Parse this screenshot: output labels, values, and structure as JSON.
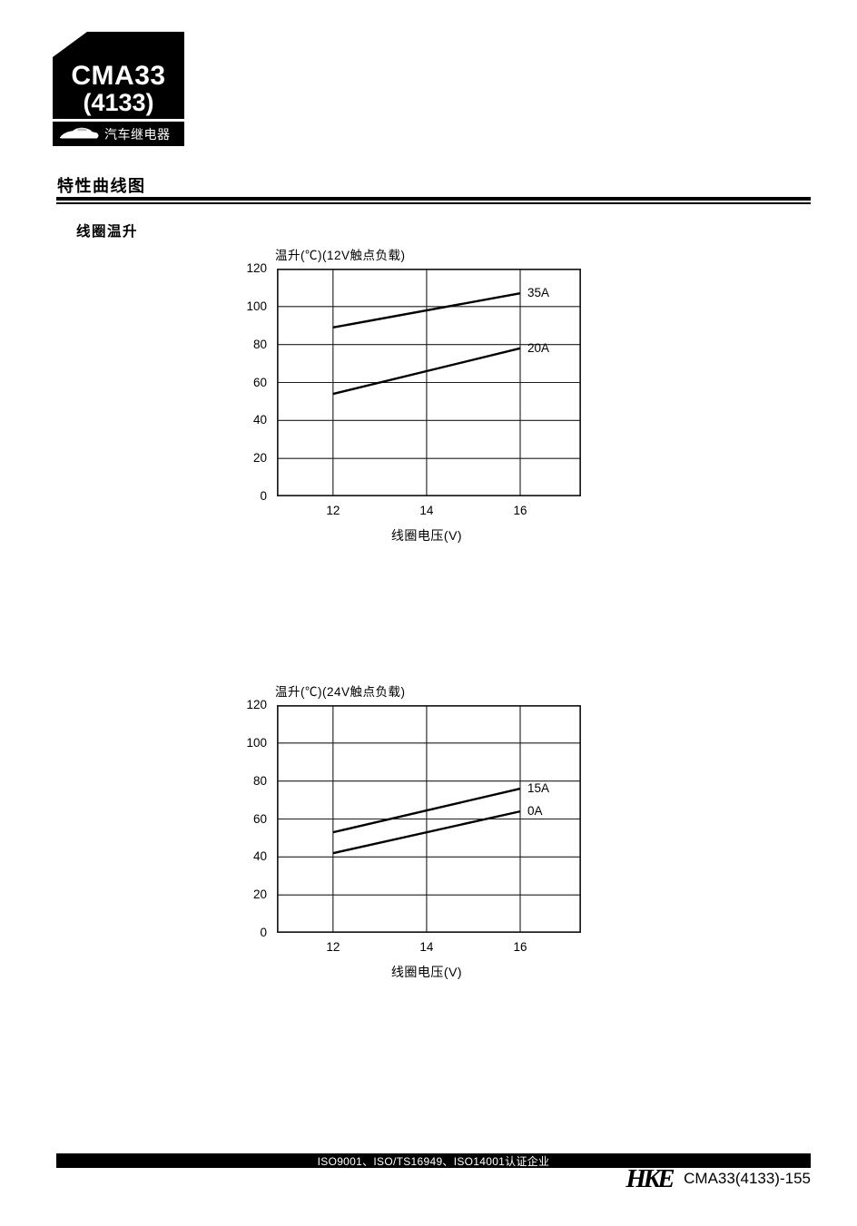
{
  "colors": {
    "ink": "#000000",
    "background": "#ffffff",
    "badge_bg": "#000000",
    "badge_fg": "#ffffff"
  },
  "header": {
    "model": "CMA33",
    "model_alt": "(4133)",
    "category": "汽车继电器",
    "car_icon": "car-silhouette-icon"
  },
  "section": {
    "title": "特性曲线图",
    "subsection": "线圈温升"
  },
  "chart_data": [
    {
      "type": "line",
      "title": "温升(℃)(12V触点负载)",
      "ylabel": "温升(℃)",
      "xlabel": "线圈电压(V)",
      "x_ticks": [
        12,
        14,
        16
      ],
      "y_ticks": [
        0,
        20,
        40,
        60,
        80,
        100,
        120
      ],
      "xlim": [
        10.8,
        17.3
      ],
      "ylim": [
        0,
        120
      ],
      "grid": true,
      "legend_position": "right-of-line-end",
      "series": [
        {
          "name": "35A",
          "x": [
            12,
            16
          ],
          "y": [
            89,
            107
          ]
        },
        {
          "name": "20A",
          "x": [
            12,
            16
          ],
          "y": [
            54,
            78
          ]
        }
      ]
    },
    {
      "type": "line",
      "title": "温升(℃)(24V触点负载)",
      "ylabel": "温升(℃)",
      "xlabel": "线圈电压(V)",
      "x_ticks": [
        12,
        14,
        16
      ],
      "y_ticks": [
        0,
        20,
        40,
        60,
        80,
        100,
        120
      ],
      "xlim": [
        10.8,
        17.3
      ],
      "ylim": [
        0,
        120
      ],
      "grid": true,
      "legend_position": "right-of-line-end",
      "series": [
        {
          "name": "15A",
          "x": [
            12,
            16
          ],
          "y": [
            53,
            76
          ]
        },
        {
          "name": "0A",
          "x": [
            12,
            16
          ],
          "y": [
            42,
            64
          ]
        }
      ]
    }
  ],
  "footer": {
    "certifications": "ISO9001、ISO/TS16949、ISO14001认证企业",
    "logo": "HKE",
    "page_ref": "CMA33(4133)-155"
  }
}
